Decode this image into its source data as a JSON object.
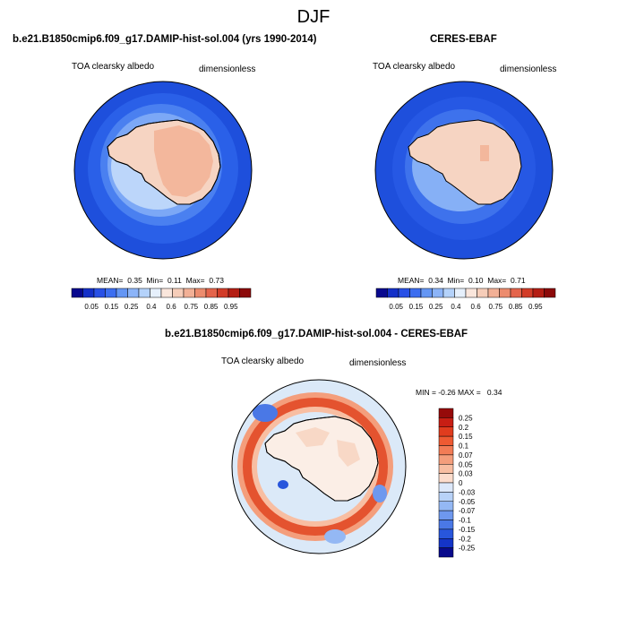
{
  "season": "DJF",
  "panels": [
    {
      "title": "b.e21.B1850cmip6.f09_g17.DAMIP-hist-sol.004 (yrs 1990-2014)",
      "variable": "TOA clearsky albedo",
      "units": "dimensionless",
      "stats": {
        "mean_label": "MEAN=",
        "mean": "0.35",
        "min_label": "Min=",
        "min": "0.11",
        "max_label": "Max=",
        "max": "0.73"
      },
      "colorbar": {
        "labels": [
          "0.05",
          "0.15",
          "0.25",
          "0.4",
          "0.6",
          "0.75",
          "0.85",
          "0.95"
        ],
        "colors": [
          "#08088e",
          "#1430c8",
          "#2850e6",
          "#3c6ef0",
          "#6496f4",
          "#8cb4f8",
          "#b4d2fa",
          "#e6f0fc",
          "#fae6dc",
          "#f6cdb9",
          "#f2b096",
          "#ec8c6e",
          "#e4644b",
          "#d23c28",
          "#b41e14",
          "#8c0a0a"
        ]
      }
    },
    {
      "title": "CERES-EBAF",
      "variable": "TOA clearsky albedo",
      "units": "dimensionless",
      "stats": {
        "mean_label": "MEAN=",
        "mean": "0.34",
        "min_label": "Min=",
        "min": "0.10",
        "max_label": "Max=",
        "max": "0.71"
      },
      "colorbar": {
        "labels": [
          "0.05",
          "0.15",
          "0.25",
          "0.4",
          "0.6",
          "0.75",
          "0.85",
          "0.95"
        ],
        "colors": [
          "#08088e",
          "#1430c8",
          "#2850e6",
          "#3c6ef0",
          "#6496f4",
          "#8cb4f8",
          "#b4d2fa",
          "#e6f0fc",
          "#fae6dc",
          "#f6cdb9",
          "#f2b096",
          "#ec8c6e",
          "#e4644b",
          "#d23c28",
          "#b41e14",
          "#8c0a0a"
        ]
      }
    },
    {
      "title": "b.e21.B1850cmip6.f09_g17.DAMIP-hist-sol.004 - CERES-EBAF",
      "variable": "TOA clearsky albedo",
      "units": "dimensionless",
      "stats": {
        "min_label": "MIN =",
        "min": "-0.26",
        "max_label": "MAX =",
        "max": "0.34"
      },
      "colorbar": {
        "labels": [
          "0.25",
          "0.2",
          "0.15",
          "0.1",
          "0.07",
          "0.05",
          "0.03",
          "0",
          "-0.03",
          "-0.05",
          "-0.07",
          "-0.1",
          "-0.15",
          "-0.2",
          "-0.25"
        ],
        "colors": [
          "#960a0a",
          "#c81e14",
          "#e03c1e",
          "#ee5a32",
          "#f27c56",
          "#f49e7c",
          "#f8bea2",
          "#fcdccc",
          "#dce8fa",
          "#b8d2f8",
          "#94b8f4",
          "#6e98ee",
          "#4a78e6",
          "#2856dc",
          "#1434c8",
          "#080a8c"
        ]
      }
    }
  ],
  "colors": {
    "ocean_blue": "#1e4fdc",
    "ice_pale": "#f6d4c2",
    "ice_salmon": "#f3b79c",
    "diff_neutral": "#dbe9f8",
    "diff_red": "#e4532f",
    "coast": "#000000"
  }
}
